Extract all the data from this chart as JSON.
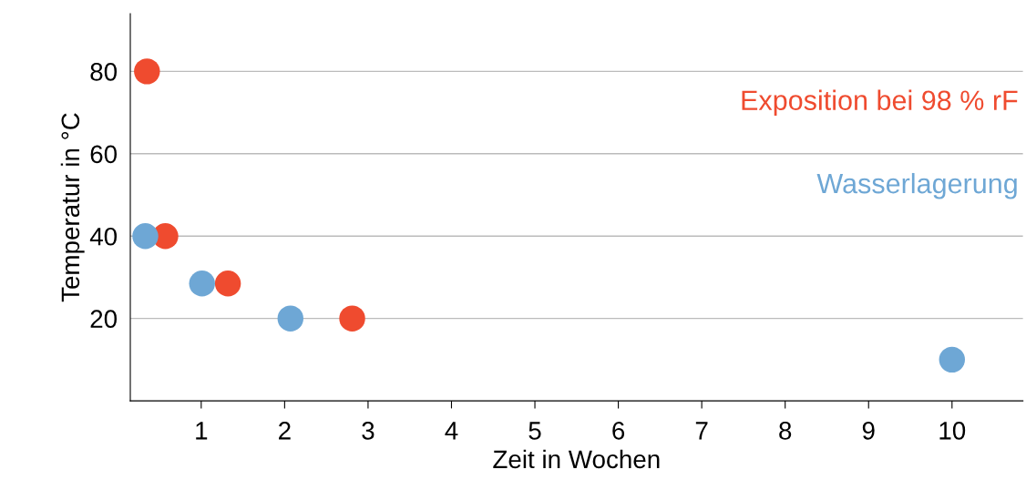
{
  "chart_data": {
    "type": "scatter",
    "xlabel": "Zeit in Wochen",
    "ylabel": "Temperatur in °C",
    "xlim": [
      0.15,
      10.85
    ],
    "xticks": [
      1,
      2,
      3,
      4,
      5,
      6,
      7,
      8,
      9,
      10
    ],
    "ylim": [
      0,
      94
    ],
    "yticks": [
      20,
      40,
      60,
      80
    ],
    "grid": "y",
    "marker": "circle",
    "series": [
      {
        "name": "Exposition bei 98 % rF",
        "color": "#ef4b2f",
        "x": [
          0.35,
          0.57,
          1.32,
          2.81
        ],
        "values": [
          80,
          40,
          28.5,
          20
        ]
      },
      {
        "name": "Wasserlagerung",
        "color": "#6ea7d5",
        "x": [
          0.33,
          1.01,
          2.07,
          10
        ],
        "values": [
          40,
          28.5,
          20,
          10
        ]
      }
    ]
  }
}
